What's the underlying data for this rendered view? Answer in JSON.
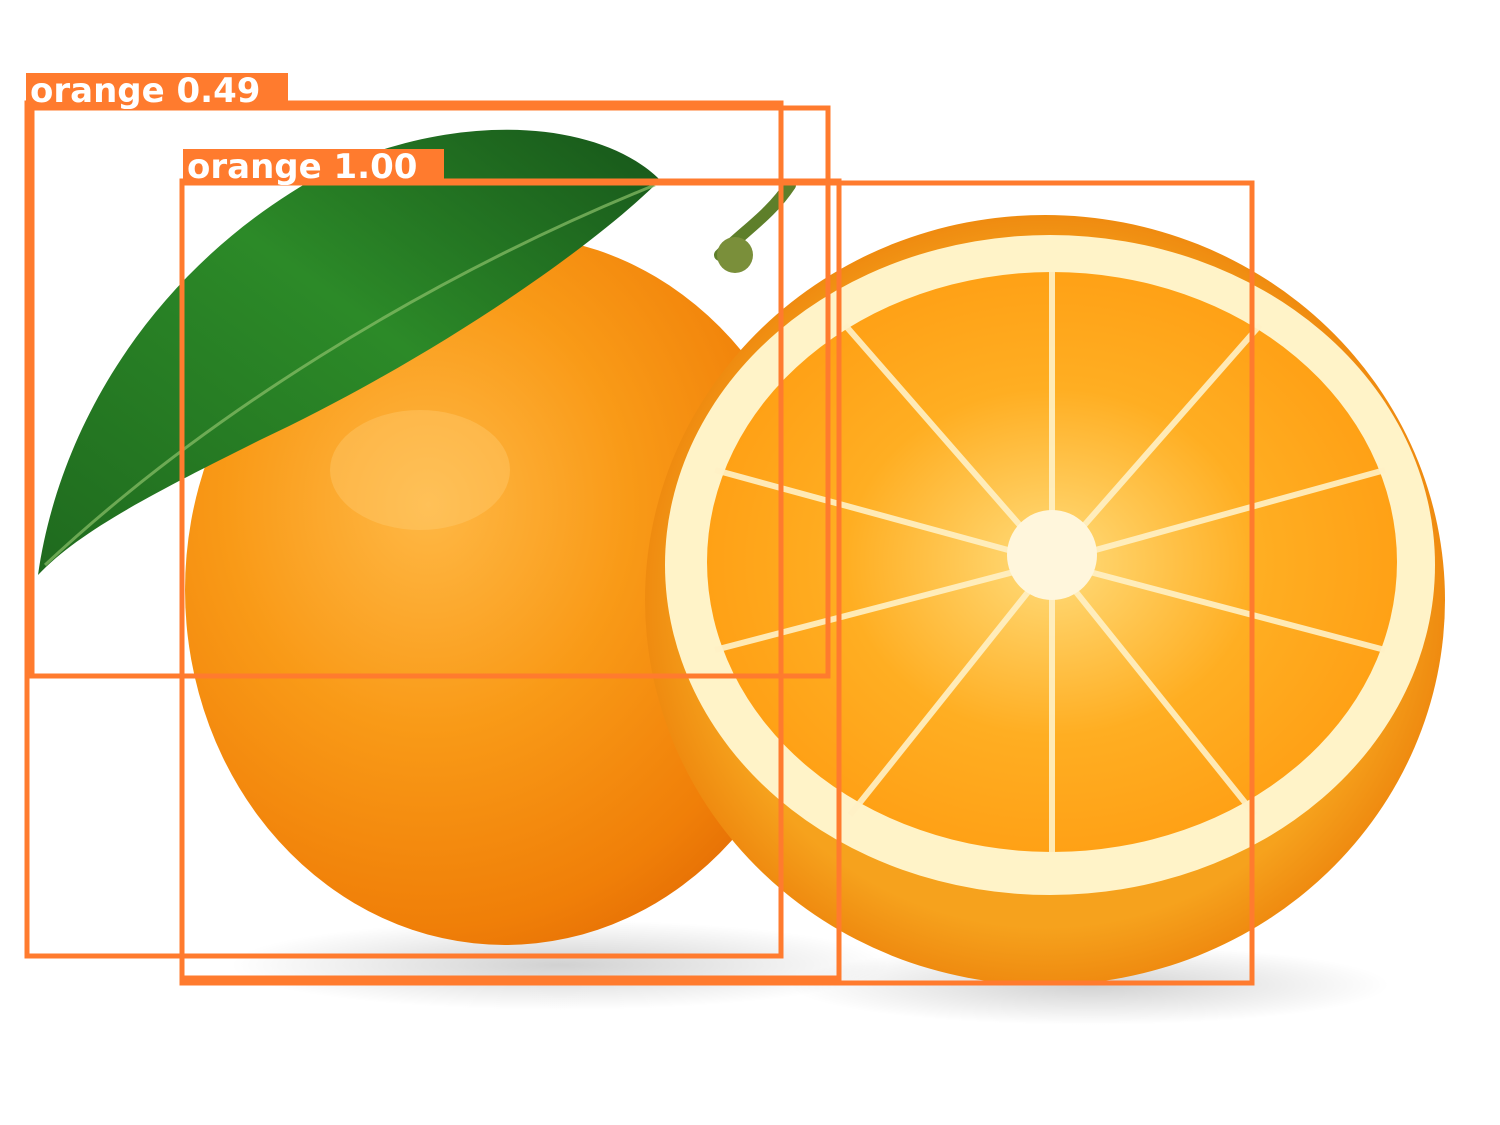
{
  "detections": [
    {
      "class": "orange",
      "score": "0.49",
      "text": "orange 0.49"
    },
    {
      "class": "orange",
      "score": "1.00",
      "text": "orange 1.00"
    }
  ],
  "colors": {
    "box": "#ff7b2e",
    "label_text": "#ffffff",
    "background": "#ffffff"
  }
}
